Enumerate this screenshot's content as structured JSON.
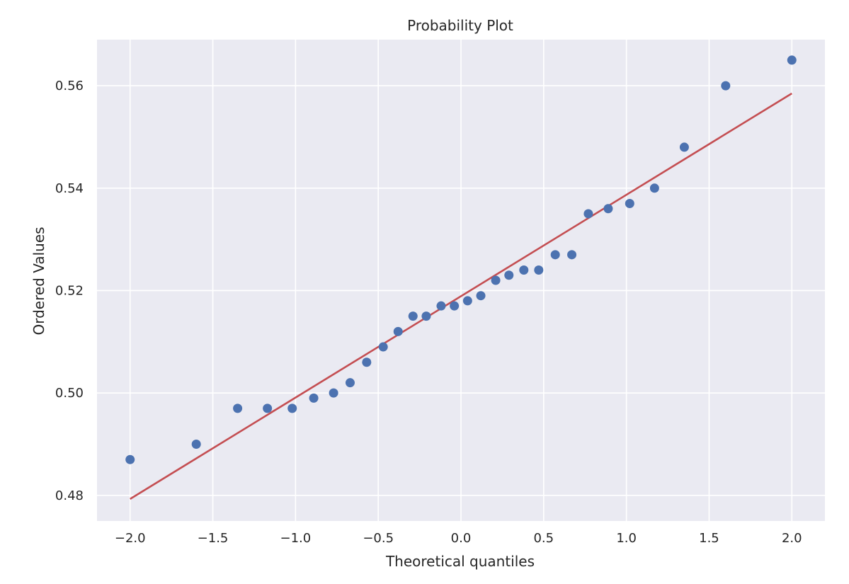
{
  "chart_data": {
    "type": "scatter",
    "title": "Probability Plot",
    "xlabel": "Theoretical quantiles",
    "ylabel": "Ordered Values",
    "xlim": [
      -2.2,
      2.2
    ],
    "ylim": [
      0.475,
      0.569
    ],
    "xticks": [
      -2.0,
      -1.5,
      -1.0,
      -0.5,
      0.0,
      0.5,
      1.0,
      1.5,
      2.0
    ],
    "xtick_labels": [
      "−2.0",
      "−1.5",
      "−1.0",
      "−0.5",
      "0.0",
      "0.5",
      "1.0",
      "1.5",
      "2.0"
    ],
    "yticks": [
      0.48,
      0.5,
      0.52,
      0.54,
      0.56
    ],
    "ytick_labels": [
      "0.48",
      "0.50",
      "0.52",
      "0.54",
      "0.56"
    ],
    "grid": true,
    "background": "#eaeaf2",
    "grid_color": "#ffffff",
    "marker_color": "#4c72b0",
    "line_color": "#c44e52",
    "points": {
      "x": [
        -2.0,
        -1.6,
        -1.35,
        -1.17,
        -1.02,
        -0.89,
        -0.77,
        -0.67,
        -0.57,
        -0.47,
        -0.38,
        -0.29,
        -0.21,
        -0.12,
        -0.04,
        0.04,
        0.12,
        0.21,
        0.29,
        0.38,
        0.47,
        0.57,
        0.67,
        0.77,
        0.89,
        1.02,
        1.17,
        1.35,
        1.6,
        2.0
      ],
      "y": [
        0.487,
        0.49,
        0.497,
        0.497,
        0.497,
        0.499,
        0.5,
        0.502,
        0.506,
        0.509,
        0.512,
        0.515,
        0.515,
        0.517,
        0.517,
        0.518,
        0.519,
        0.522,
        0.523,
        0.524,
        0.524,
        0.527,
        0.527,
        0.535,
        0.536,
        0.537,
        0.54,
        0.548,
        0.56,
        0.565
      ]
    },
    "fit_line": {
      "x": [
        -2.0,
        2.0
      ],
      "y": [
        0.4793,
        0.5585
      ]
    }
  }
}
